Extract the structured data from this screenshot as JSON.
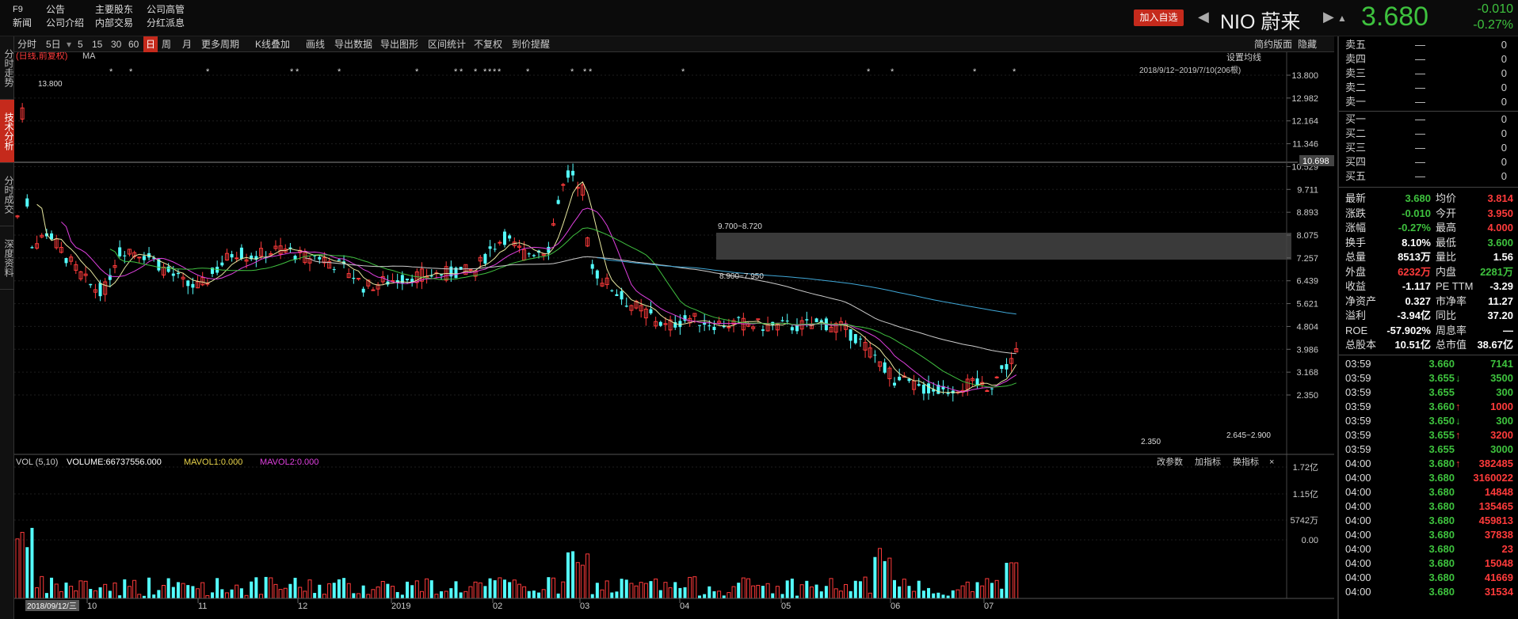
{
  "top": {
    "f9": "F9",
    "news": "新闻",
    "announce": "公告",
    "company_intro": "公司介绍",
    "shareholders": "主要股东",
    "insider_trade": "内部交易",
    "executives": "公司高管",
    "dividends": "分红派息",
    "add_watchlist": "加入自选",
    "symbol": "NIO 蔚来",
    "price": "3.680",
    "change": "-0.010",
    "change_pct": "-0.27%"
  },
  "side_tabs": [
    "分时走势",
    "技术分析",
    "分时成交",
    "深度资料"
  ],
  "toolbar": {
    "items": [
      "分时",
      "5日",
      "5",
      "15",
      "30",
      "60",
      "日",
      "周",
      "月",
      "更多周期",
      "K线叠加",
      "画线",
      "导出数据",
      "导出图形",
      "区间统计",
      "不复权",
      "到价提醒"
    ],
    "right": [
      "简约版面",
      "隐藏"
    ]
  },
  "chart": {
    "legend": "(日线,前复权)",
    "ma": "MA",
    "setting": "设置均线",
    "range": "2018/9/12~2019/7/10(206根)",
    "price_ticks": [
      "13.800",
      "12.982",
      "12.164",
      "11.346",
      "10.529",
      "9.711",
      "8.893",
      "8.075",
      "7.257",
      "6.439",
      "5.621",
      "4.804",
      "3.986",
      "3.168",
      "2.350"
    ],
    "crosshair_value": "10.698",
    "annotations": {
      "high": "13.800",
      "zone1": "9.700~8.720",
      "zone2": "8.900~7.950",
      "low": "2.350",
      "zone3": "2.645~2.900"
    },
    "x_labels": [
      "10",
      "11",
      "12",
      "2019",
      "02",
      "03",
      "04",
      "05",
      "06",
      "07"
    ],
    "start_date": "2018/09/12/三",
    "vol_header": "VOL (5,10)",
    "vol_value": "VOLUME:66737556.000",
    "mavol1": "MAVOL1:0.000",
    "mavol2": "MAVOL2:0.000",
    "vol_ticks": [
      "1.72亿",
      "1.15亿",
      "5742万",
      "0.00"
    ],
    "vol_buttons": [
      "改参数",
      "加指标",
      "换指标",
      "×"
    ]
  },
  "order_book": {
    "asks": [
      {
        "name": "卖五",
        "price": "—",
        "vol": "0"
      },
      {
        "name": "卖四",
        "price": "—",
        "vol": "0"
      },
      {
        "name": "卖三",
        "price": "—",
        "vol": "0"
      },
      {
        "name": "卖二",
        "price": "—",
        "vol": "0"
      },
      {
        "name": "卖一",
        "price": "—",
        "vol": "0"
      }
    ],
    "bids": [
      {
        "name": "买一",
        "price": "—",
        "vol": "0"
      },
      {
        "name": "买二",
        "price": "—",
        "vol": "0"
      },
      {
        "name": "买三",
        "price": "—",
        "vol": "0"
      },
      {
        "name": "买四",
        "price": "—",
        "vol": "0"
      },
      {
        "name": "买五",
        "price": "—",
        "vol": "0"
      }
    ]
  },
  "quote": [
    {
      "l1": "最新",
      "v1": "3.680",
      "c1": "grn",
      "l2": "均价",
      "v2": "3.814",
      "c2": "red"
    },
    {
      "l1": "涨跌",
      "v1": "-0.010",
      "c1": "grn",
      "l2": "今开",
      "v2": "3.950",
      "c2": "red"
    },
    {
      "l1": "涨幅",
      "v1": "-0.27%",
      "c1": "grn",
      "l2": "最高",
      "v2": "4.000",
      "c2": "red"
    },
    {
      "l1": "换手",
      "v1": "8.10%",
      "c1": "",
      "l2": "最低",
      "v2": "3.600",
      "c2": "grn"
    },
    {
      "l1": "总量",
      "v1": "8513万",
      "c1": "",
      "l2": "量比",
      "v2": "1.56",
      "c2": ""
    },
    {
      "l1": "外盘",
      "v1": "6232万",
      "c1": "red",
      "l2": "内盘",
      "v2": "2281万",
      "c2": "grn"
    },
    {
      "l1": "收益",
      "v1": "-1.117",
      "c1": "",
      "l2": "PE TTM",
      "v2": "-3.29",
      "c2": ""
    },
    {
      "l1": "净资产",
      "v1": "0.327",
      "c1": "",
      "l2": "市净率",
      "v2": "11.27",
      "c2": ""
    },
    {
      "l1": "溢利",
      "v1": "-3.94亿",
      "c1": "",
      "l2": "同比",
      "v2": "37.20",
      "c2": ""
    },
    {
      "l1": "ROE",
      "v1": "-57.902%",
      "c1": "",
      "l2": "周息率",
      "v2": "—",
      "c2": ""
    },
    {
      "l1": "总股本",
      "v1": "10.51亿",
      "c1": "",
      "l2": "总市值",
      "v2": "38.67亿",
      "c2": ""
    }
  ],
  "trades": [
    {
      "t": "03:59",
      "p": "3.660",
      "a": "",
      "v": "7141",
      "pc": "grn",
      "vc": "grn"
    },
    {
      "t": "03:59",
      "p": "3.655",
      "a": "↓",
      "v": "3500",
      "pc": "grn",
      "vc": "grn"
    },
    {
      "t": "03:59",
      "p": "3.655",
      "a": "",
      "v": "300",
      "pc": "grn",
      "vc": "grn"
    },
    {
      "t": "03:59",
      "p": "3.660",
      "a": "↑",
      "v": "1000",
      "pc": "grn",
      "vc": "red"
    },
    {
      "t": "03:59",
      "p": "3.650",
      "a": "↓",
      "v": "300",
      "pc": "grn",
      "vc": "grn"
    },
    {
      "t": "03:59",
      "p": "3.655",
      "a": "↑",
      "v": "3200",
      "pc": "grn",
      "vc": "red"
    },
    {
      "t": "03:59",
      "p": "3.655",
      "a": "",
      "v": "3000",
      "pc": "grn",
      "vc": "grn"
    },
    {
      "t": "04:00",
      "p": "3.680",
      "a": "↑",
      "v": "382485",
      "pc": "grn",
      "vc": "red"
    },
    {
      "t": "04:00",
      "p": "3.680",
      "a": "",
      "v": "3160022",
      "pc": "grn",
      "vc": "red"
    },
    {
      "t": "04:00",
      "p": "3.680",
      "a": "",
      "v": "14848",
      "pc": "grn",
      "vc": "red"
    },
    {
      "t": "04:00",
      "p": "3.680",
      "a": "",
      "v": "135465",
      "pc": "grn",
      "vc": "red"
    },
    {
      "t": "04:00",
      "p": "3.680",
      "a": "",
      "v": "459813",
      "pc": "grn",
      "vc": "red"
    },
    {
      "t": "04:00",
      "p": "3.680",
      "a": "",
      "v": "37838",
      "pc": "grn",
      "vc": "red"
    },
    {
      "t": "04:00",
      "p": "3.680",
      "a": "",
      "v": "23",
      "pc": "grn",
      "vc": "red"
    },
    {
      "t": "04:00",
      "p": "3.680",
      "a": "",
      "v": "15048",
      "pc": "grn",
      "vc": "red"
    },
    {
      "t": "04:00",
      "p": "3.680",
      "a": "",
      "v": "41669",
      "pc": "grn",
      "vc": "red"
    },
    {
      "t": "04:00",
      "p": "3.680",
      "a": "",
      "v": "31534",
      "pc": "grn",
      "vc": "red"
    }
  ],
  "colors": {
    "up": "#ff3b3b",
    "down": "#3ec23e",
    "candle_down": "#54ffff",
    "ma5": "#e8e8a0",
    "ma10": "#e040e0",
    "ma20": "#40c040",
    "ma60": "#cccccc",
    "ma120": "#40a8d8",
    "accent": "#c52a1c"
  }
}
